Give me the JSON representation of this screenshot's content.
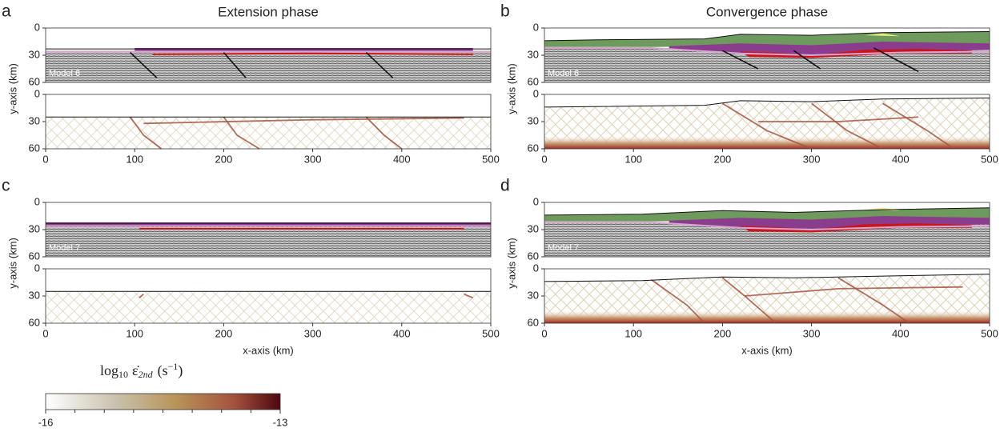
{
  "column_titles": [
    "Extension phase",
    "Convergence phase"
  ],
  "panels": [
    {
      "letter": "a",
      "model": "Model 6"
    },
    {
      "letter": "b",
      "model": "Model 6"
    },
    {
      "letter": "c",
      "model": "Model 7"
    },
    {
      "letter": "d",
      "model": "Model 7"
    }
  ],
  "y_axis_label": "y-axis (km)",
  "x_axis_label": "x-axis (km)",
  "y_ticks": [
    0,
    30,
    60
  ],
  "x_ticks": [
    0,
    100,
    200,
    300,
    400,
    500
  ],
  "colorbar": {
    "func": "log",
    "base": "10",
    "symbol": "ε̇",
    "subscript": "2nd",
    "unit": "(s",
    "exponent": "−1",
    "close": ")",
    "min": -16,
    "max": -13
  }
}
